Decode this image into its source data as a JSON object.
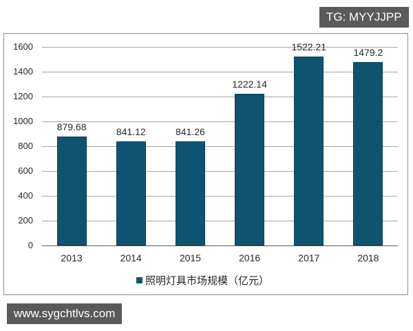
{
  "watermarks": {
    "top": "TG: MYYJJPP",
    "bottom": "www.sygchtlvs.com"
  },
  "chart_data": {
    "type": "bar",
    "title": "",
    "xlabel": "",
    "ylabel": "",
    "categories": [
      "2013",
      "2014",
      "2015",
      "2016",
      "2017",
      "2018"
    ],
    "series": [
      {
        "name": "照明灯具市场规模（亿元）",
        "values": [
          879.68,
          841.12,
          841.26,
          1222.14,
          1522.21,
          1479.2
        ],
        "color": "#0e5470"
      }
    ],
    "value_labels": [
      "879.68",
      "841.12",
      "841.26",
      "1222.14",
      "1522.21",
      "1479.2"
    ],
    "ylim": [
      0,
      1600
    ],
    "yticks": [
      "0",
      "200",
      "400",
      "600",
      "800",
      "1000",
      "1200",
      "1400",
      "1600"
    ],
    "grid": true,
    "legend_position": "bottom"
  },
  "legend": {
    "label": "照明灯具市场规模（亿元）"
  }
}
